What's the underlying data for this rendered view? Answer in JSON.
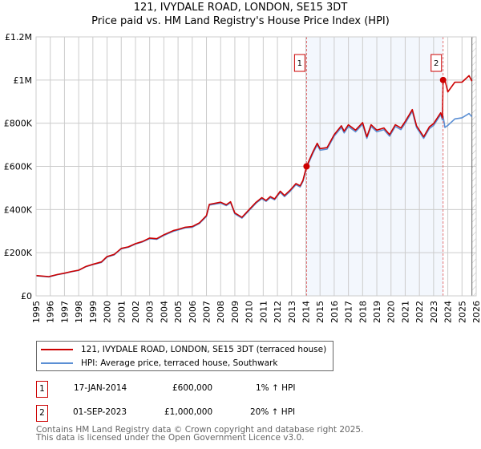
{
  "title_line1": "121, IVYDALE ROAD, LONDON, SE15 3DT",
  "title_line2": "Price paid vs. HM Land Registry's House Price Index (HPI)",
  "chart_data": {
    "type": "line",
    "title": "121, IVYDALE ROAD, LONDON, SE15 3DT - Price paid vs. HM Land Registry's House Price Index (HPI)",
    "xlim": [
      1995,
      2026
    ],
    "ylim": [
      0,
      1200000
    ],
    "y_ticks": [
      0,
      200000,
      400000,
      600000,
      800000,
      1000000,
      1200000
    ],
    "y_tick_labels": [
      "£0",
      "£200K",
      "£400K",
      "£600K",
      "£800K",
      "£1M",
      "£1.2M"
    ],
    "x_ticks": [
      1995,
      1996,
      1997,
      1998,
      1999,
      2000,
      2001,
      2002,
      2003,
      2004,
      2005,
      2006,
      2007,
      2008,
      2009,
      2010,
      2011,
      2012,
      2013,
      2014,
      2015,
      2016,
      2017,
      2018,
      2019,
      2020,
      2021,
      2022,
      2023,
      2024,
      2025,
      2026
    ],
    "grid": true,
    "shaded_range": [
      2014.05,
      2023.67
    ],
    "hatched_from": 2025.7,
    "series": [
      {
        "name": "121, IVYDALE ROAD, LONDON, SE15 3DT (terraced house)",
        "color": "#cc0000",
        "x": [
          1995,
          1995.9,
          1996.5,
          1997,
          1997.5,
          1998,
          1998.5,
          1999,
          1999.6,
          2000,
          2000.5,
          2001,
          2001.5,
          2002,
          2002.5,
          2003,
          2003.5,
          2004,
          2004.7,
          2005,
          2005.5,
          2006,
          2006.5,
          2007,
          2007.2,
          2008,
          2008.4,
          2008.7,
          2009,
          2009.5,
          2010,
          2010.5,
          2010.9,
          2011.2,
          2011.5,
          2011.8,
          2012.2,
          2012.5,
          2012.9,
          2013.3,
          2013.6,
          2013.8,
          2014.05,
          2014.5,
          2014.8,
          2015,
          2015.5,
          2016,
          2016.5,
          2016.7,
          2017,
          2017.5,
          2018,
          2018.3,
          2018.6,
          2019,
          2019.5,
          2019.9,
          2020.3,
          2020.7,
          2021,
          2021.5,
          2021.8,
          2022.3,
          2022.7,
          2023,
          2023.5,
          2023.62,
          2023.67,
          2023.8,
          2024,
          2024.5,
          2025,
          2025.5,
          2025.7
        ],
        "values": [
          94000,
          89000,
          99000,
          105000,
          113000,
          119000,
          136000,
          146000,
          157000,
          182000,
          192000,
          220000,
          227000,
          242000,
          252000,
          268000,
          265000,
          283000,
          303000,
          308000,
          318000,
          321000,
          338000,
          372000,
          424000,
          434000,
          422000,
          436000,
          384000,
          364000,
          399000,
          434000,
          455000,
          442000,
          460000,
          449000,
          485000,
          465000,
          490000,
          520000,
          510000,
          535000,
          600000,
          667000,
          707000,
          682000,
          687000,
          747000,
          788000,
          763000,
          793000,
          768000,
          803000,
          737000,
          793000,
          768000,
          778000,
          747000,
          793000,
          778000,
          808000,
          863000,
          788000,
          737000,
          783000,
          798000,
          848000,
          825000,
          1000000,
          1000000,
          945000,
          990000,
          990000,
          1020000,
          995000
        ]
      },
      {
        "name": "HPI: Average price, terraced house, Southwark",
        "color": "#5b8fd4",
        "x": [
          1995,
          1995.9,
          1996.5,
          1997,
          1997.5,
          1998,
          1998.5,
          1999,
          1999.6,
          2000,
          2000.5,
          2001,
          2001.5,
          2002,
          2002.5,
          2003,
          2003.5,
          2004,
          2004.7,
          2005,
          2005.5,
          2006,
          2006.5,
          2007,
          2007.2,
          2008,
          2008.4,
          2008.7,
          2009,
          2009.5,
          2010,
          2010.5,
          2010.9,
          2011.2,
          2011.5,
          2011.8,
          2012.2,
          2012.5,
          2012.9,
          2013.3,
          2013.6,
          2013.8,
          2014.05,
          2014.5,
          2014.8,
          2015,
          2015.5,
          2016,
          2016.5,
          2016.7,
          2017,
          2017.5,
          2018,
          2018.3,
          2018.6,
          2019,
          2019.5,
          2019.9,
          2020.3,
          2020.7,
          2021,
          2021.5,
          2021.8,
          2022.3,
          2022.7,
          2023,
          2023.5,
          2023.62,
          2023.67,
          2023.8,
          2024,
          2024.5,
          2025,
          2025.5,
          2025.7
        ],
        "values": [
          93000,
          88000,
          98000,
          104000,
          112000,
          118000,
          135000,
          145000,
          155000,
          180000,
          190000,
          218000,
          225000,
          240000,
          250000,
          265000,
          262000,
          280000,
          300000,
          305000,
          315000,
          318000,
          335000,
          368000,
          420000,
          430000,
          418000,
          432000,
          380000,
          360000,
          395000,
          430000,
          450000,
          438000,
          455000,
          445000,
          480000,
          460000,
          485000,
          515000,
          505000,
          530000,
          594000,
          660000,
          700000,
          675000,
          680000,
          740000,
          780000,
          755000,
          785000,
          760000,
          795000,
          730000,
          785000,
          760000,
          770000,
          740000,
          785000,
          770000,
          800000,
          855000,
          780000,
          730000,
          775000,
          790000,
          840000,
          815000,
          833000,
          780000,
          790000,
          820000,
          825000,
          845000,
          830000
        ]
      }
    ],
    "annotations": [
      {
        "label": "1",
        "x": 2014.05,
        "value": 600000
      },
      {
        "label": "2",
        "x": 2023.67,
        "value": 1000000
      }
    ]
  },
  "legend": [
    {
      "label": "121, IVYDALE ROAD, LONDON, SE15 3DT (terraced house)",
      "color": "#cc0000"
    },
    {
      "label": "HPI: Average price, terraced house, Southwark",
      "color": "#5b8fd4"
    }
  ],
  "transactions": [
    {
      "num": "1",
      "date": "17-JAN-2014",
      "price": "£600,000",
      "hpi": "1% ↑ HPI"
    },
    {
      "num": "2",
      "date": "01-SEP-2023",
      "price": "£1,000,000",
      "hpi": "20% ↑ HPI"
    }
  ],
  "footer_line1": "Contains HM Land Registry data © Crown copyright and database right 2025.",
  "footer_line2": "This data is licensed under the Open Government Licence v3.0."
}
